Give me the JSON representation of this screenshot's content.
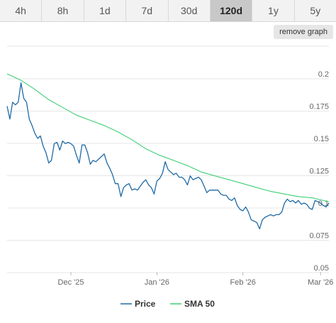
{
  "tabs": [
    {
      "label": "4h",
      "active": false
    },
    {
      "label": "8h",
      "active": false
    },
    {
      "label": "1d",
      "active": false
    },
    {
      "label": "7d",
      "active": false
    },
    {
      "label": "30d",
      "active": false
    },
    {
      "label": "120d",
      "active": true
    },
    {
      "label": "1y",
      "active": false
    },
    {
      "label": "5y",
      "active": false
    }
  ],
  "remove_graph_label": "remove graph",
  "colors": {
    "price": "#1f6aa5",
    "sma": "#3ecf75",
    "grid": "#e6e6e6",
    "axis_text": "#666666"
  },
  "chart_data": {
    "type": "line",
    "title": "",
    "xlabel": "",
    "ylabel": "",
    "ylim": [
      0.05,
      0.2
    ],
    "yticks": [
      0.05,
      0.075,
      0.1,
      0.125,
      0.15,
      0.175,
      0.2
    ],
    "ytick_labels": [
      "0.05",
      "0.075",
      "0.1",
      "0.125",
      "0.15",
      "0.175",
      "0.2"
    ],
    "xlim": [
      "2025-11-08",
      "2026-03-04"
    ],
    "xticks": [
      {
        "date": "2025-12-01",
        "label": "Dec '25"
      },
      {
        "date": "2026-01-01",
        "label": "Jan '26"
      },
      {
        "date": "2026-02-01",
        "label": "Feb '26"
      },
      {
        "date": "2026-03-01",
        "label": "Mar '26"
      }
    ],
    "grid": true,
    "legend": "bottom-center",
    "series": [
      {
        "name": "Price",
        "color": "#1f6aa5",
        "x": [
          "2025-11-08",
          "2025-11-09",
          "2025-11-10",
          "2025-11-11",
          "2025-11-12",
          "2025-11-13",
          "2025-11-14",
          "2025-11-15",
          "2025-11-16",
          "2025-11-17",
          "2025-11-18",
          "2025-11-19",
          "2025-11-20",
          "2025-11-21",
          "2025-11-22",
          "2025-11-23",
          "2025-11-24",
          "2025-11-25",
          "2025-11-26",
          "2025-11-27",
          "2025-11-28",
          "2025-11-29",
          "2025-11-30",
          "2025-12-01",
          "2025-12-02",
          "2025-12-03",
          "2025-12-04",
          "2025-12-05",
          "2025-12-06",
          "2025-12-07",
          "2025-12-08",
          "2025-12-09",
          "2025-12-10",
          "2025-12-11",
          "2025-12-12",
          "2025-12-13",
          "2025-12-14",
          "2025-12-15",
          "2025-12-16",
          "2025-12-17",
          "2025-12-18",
          "2025-12-19",
          "2025-12-20",
          "2025-12-21",
          "2025-12-22",
          "2025-12-23",
          "2025-12-24",
          "2025-12-25",
          "2025-12-26",
          "2025-12-27",
          "2025-12-28",
          "2025-12-29",
          "2025-12-30",
          "2025-12-31",
          "2026-01-01",
          "2026-01-02",
          "2026-01-03",
          "2026-01-04",
          "2026-01-05",
          "2026-01-06",
          "2026-01-07",
          "2026-01-08",
          "2026-01-09",
          "2026-01-10",
          "2026-01-11",
          "2026-01-12",
          "2026-01-13",
          "2026-01-14",
          "2026-01-15",
          "2026-01-16",
          "2026-01-17",
          "2026-01-18",
          "2026-01-19",
          "2026-01-20",
          "2026-01-21",
          "2026-01-22",
          "2026-01-23",
          "2026-01-24",
          "2026-01-25",
          "2026-01-26",
          "2026-01-27",
          "2026-01-28",
          "2026-01-29",
          "2026-01-30",
          "2026-01-31",
          "2026-02-01",
          "2026-02-02",
          "2026-02-03",
          "2026-02-04",
          "2026-02-05",
          "2026-02-06",
          "2026-02-07",
          "2026-02-08",
          "2026-02-09",
          "2026-02-10",
          "2026-02-11",
          "2026-02-12",
          "2026-02-13",
          "2026-02-14",
          "2026-02-15",
          "2026-02-16",
          "2026-02-17",
          "2026-02-18",
          "2026-02-19",
          "2026-02-20",
          "2026-02-21",
          "2026-02-22",
          "2026-02-23",
          "2026-02-24",
          "2026-02-25",
          "2026-02-26",
          "2026-02-27",
          "2026-02-28",
          "2026-03-01",
          "2026-03-02",
          "2026-03-03",
          "2026-03-04"
        ],
        "values": [
          0.175,
          0.165,
          0.178,
          0.176,
          0.178,
          0.193,
          0.181,
          0.178,
          0.165,
          0.16,
          0.154,
          0.15,
          0.152,
          0.144,
          0.139,
          0.131,
          0.133,
          0.146,
          0.147,
          0.141,
          0.148,
          0.146,
          0.147,
          0.146,
          0.144,
          0.137,
          0.131,
          0.145,
          0.145,
          0.139,
          0.13,
          0.133,
          0.132,
          0.134,
          0.136,
          0.138,
          0.131,
          0.127,
          0.122,
          0.115,
          0.115,
          0.105,
          0.112,
          0.114,
          0.115,
          0.11,
          0.111,
          0.11,
          0.113,
          0.116,
          0.118,
          0.114,
          0.112,
          0.107,
          0.117,
          0.119,
          0.123,
          0.132,
          0.126,
          0.124,
          0.122,
          0.123,
          0.12,
          0.12,
          0.118,
          0.114,
          0.121,
          0.118,
          0.119,
          0.12,
          0.118,
          0.113,
          0.108,
          0.11,
          0.11,
          0.11,
          0.11,
          0.107,
          0.106,
          0.106,
          0.103,
          0.102,
          0.104,
          0.098,
          0.095,
          0.094,
          0.097,
          0.093,
          0.087,
          0.086,
          0.085,
          0.08,
          0.087,
          0.089,
          0.09,
          0.091,
          0.09,
          0.091,
          0.091,
          0.093,
          0.1,
          0.103,
          0.101,
          0.102,
          0.1,
          0.102,
          0.099,
          0.1,
          0.099,
          0.096,
          0.095,
          0.102,
          0.101,
          0.1,
          0.098,
          0.097,
          0.1
        ]
      },
      {
        "name": "SMA 50",
        "color": "#3ecf75",
        "x": [
          "2025-11-08",
          "2025-11-13",
          "2025-11-18",
          "2025-11-23",
          "2025-11-28",
          "2025-12-03",
          "2025-12-08",
          "2025-12-13",
          "2025-12-18",
          "2025-12-23",
          "2025-12-28",
          "2026-01-02",
          "2026-01-07",
          "2026-01-12",
          "2026-01-17",
          "2026-01-22",
          "2026-01-27",
          "2026-02-01",
          "2026-02-06",
          "2026-02-11",
          "2026-02-16",
          "2026-02-21",
          "2026-02-26",
          "2026-03-02",
          "2026-03-04"
        ],
        "values": [
          0.2,
          0.195,
          0.188,
          0.18,
          0.174,
          0.168,
          0.164,
          0.16,
          0.155,
          0.149,
          0.142,
          0.137,
          0.133,
          0.129,
          0.124,
          0.121,
          0.118,
          0.115,
          0.112,
          0.109,
          0.107,
          0.105,
          0.104,
          0.102,
          0.101
        ]
      }
    ]
  }
}
